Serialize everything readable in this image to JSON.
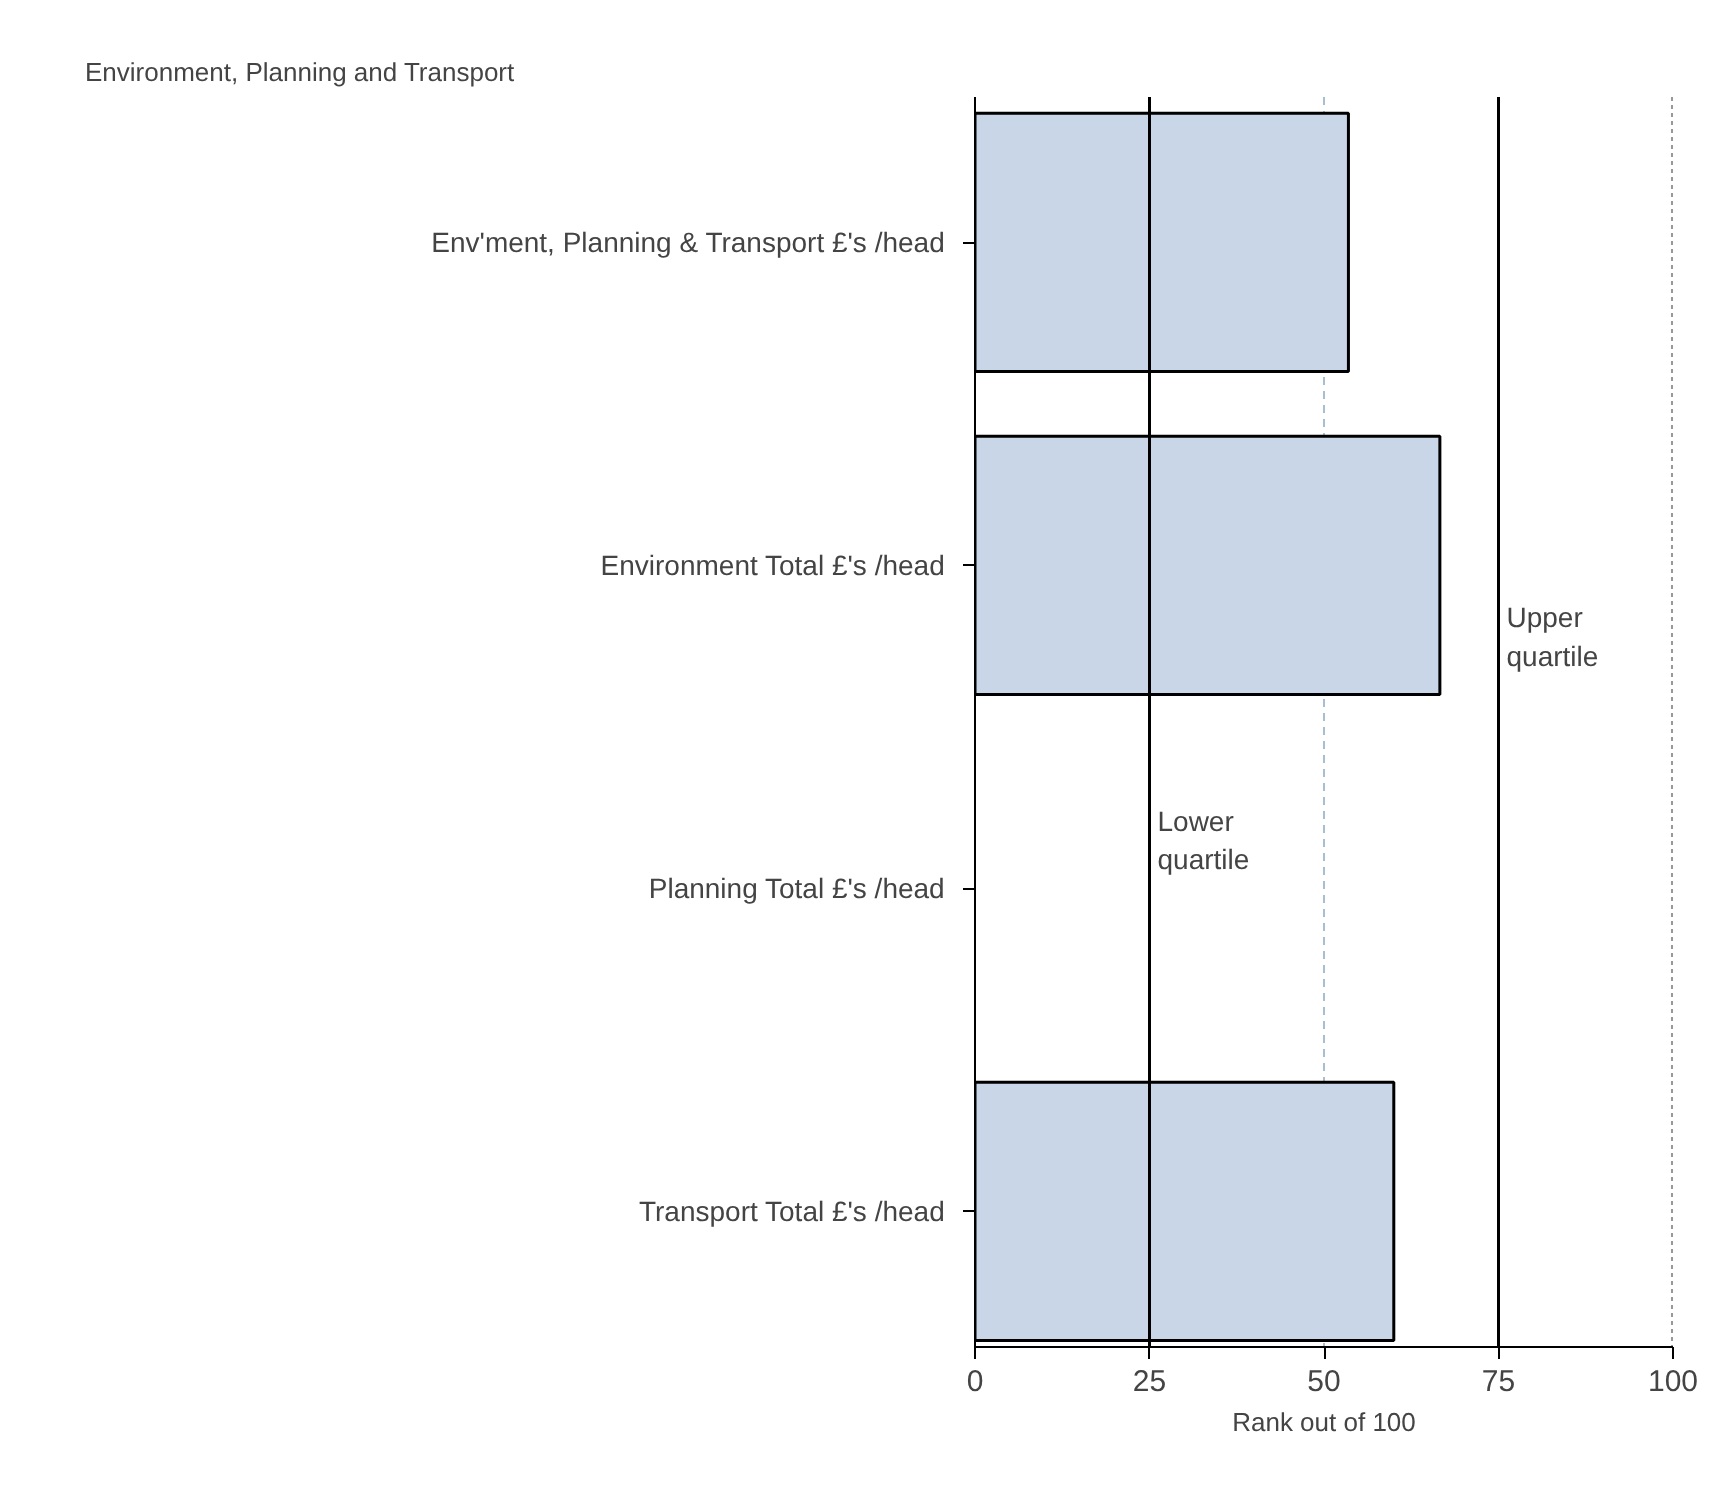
{
  "chart_data": {
    "type": "bar",
    "orientation": "horizontal",
    "title": "Environment, Planning and Transport",
    "xlabel": "Rank out of 100",
    "categories": [
      "Env'ment, Planning & Transport  £'s /head",
      "Environment Total  £'s /head",
      "Planning Total  £'s /head",
      "Transport Total  £'s /head"
    ],
    "values": [
      53.5,
      66.6,
      null,
      60
    ],
    "color": "#c8d6e8",
    "xlim": [
      0,
      100
    ],
    "xticks": [
      0,
      25,
      50,
      75,
      100
    ],
    "grid": false,
    "ref_lines": [
      {
        "axis": "x",
        "value": 25,
        "label": "Lower\nquartile",
        "color": "#000000",
        "line_style": "solid"
      },
      {
        "axis": "x",
        "value": 50,
        "label": null,
        "color": "#a9bfd1",
        "line_style": "dashed"
      },
      {
        "axis": "x",
        "value": 75,
        "label": "Upper\nquartile",
        "color": "#000000",
        "line_style": "solid"
      },
      {
        "axis": "x",
        "value": 100,
        "label": null,
        "color": "#999999",
        "line_style": "dotted"
      }
    ]
  }
}
